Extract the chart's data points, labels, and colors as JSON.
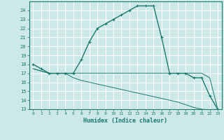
{
  "xlabel": "Humidex (Indice chaleur)",
  "bg_color": "#cde8e8",
  "grid_color": "#ffffff",
  "line_color": "#1a7a6e",
  "xlim": [
    -0.5,
    23.5
  ],
  "ylim": [
    13,
    25
  ],
  "xticks": [
    0,
    1,
    2,
    3,
    4,
    5,
    6,
    7,
    8,
    9,
    10,
    11,
    12,
    13,
    14,
    15,
    16,
    17,
    18,
    19,
    20,
    21,
    22,
    23
  ],
  "yticks": [
    13,
    14,
    15,
    16,
    17,
    18,
    19,
    20,
    21,
    22,
    23,
    24
  ],
  "line1_x": [
    0,
    1,
    2,
    3,
    4,
    5,
    6,
    7,
    8,
    9,
    10,
    11,
    12,
    13,
    14,
    15,
    16,
    17,
    18,
    19,
    20,
    21,
    22,
    23
  ],
  "line1_y": [
    18,
    17.5,
    17,
    17,
    17,
    17,
    18.5,
    20.5,
    22,
    22.5,
    23,
    23.5,
    24,
    24.5,
    24.5,
    24.5,
    21,
    17,
    17,
    17,
    16.5,
    16.5,
    14.5,
    13
  ],
  "line2_x": [
    0,
    2,
    3,
    4,
    5,
    6,
    7,
    8,
    9,
    10,
    11,
    12,
    13,
    14,
    15,
    16,
    17,
    18,
    19,
    20,
    21,
    22,
    23
  ],
  "line2_y": [
    17.5,
    17,
    17,
    17,
    17,
    17,
    17,
    17,
    17,
    17,
    17,
    17,
    17,
    17,
    17,
    17,
    17,
    17,
    17,
    17,
    17,
    16.5,
    13
  ],
  "line3_x": [
    0,
    2,
    3,
    4,
    5,
    6,
    7,
    8,
    9,
    10,
    11,
    12,
    13,
    14,
    15,
    16,
    17,
    18,
    19,
    20,
    21,
    22,
    23
  ],
  "line3_y": [
    17.5,
    17,
    17,
    17,
    16.5,
    16.2,
    16.0,
    15.8,
    15.6,
    15.4,
    15.2,
    15.0,
    14.8,
    14.6,
    14.4,
    14.2,
    14.0,
    13.8,
    13.5,
    13.2,
    13.0,
    12.9,
    13
  ]
}
